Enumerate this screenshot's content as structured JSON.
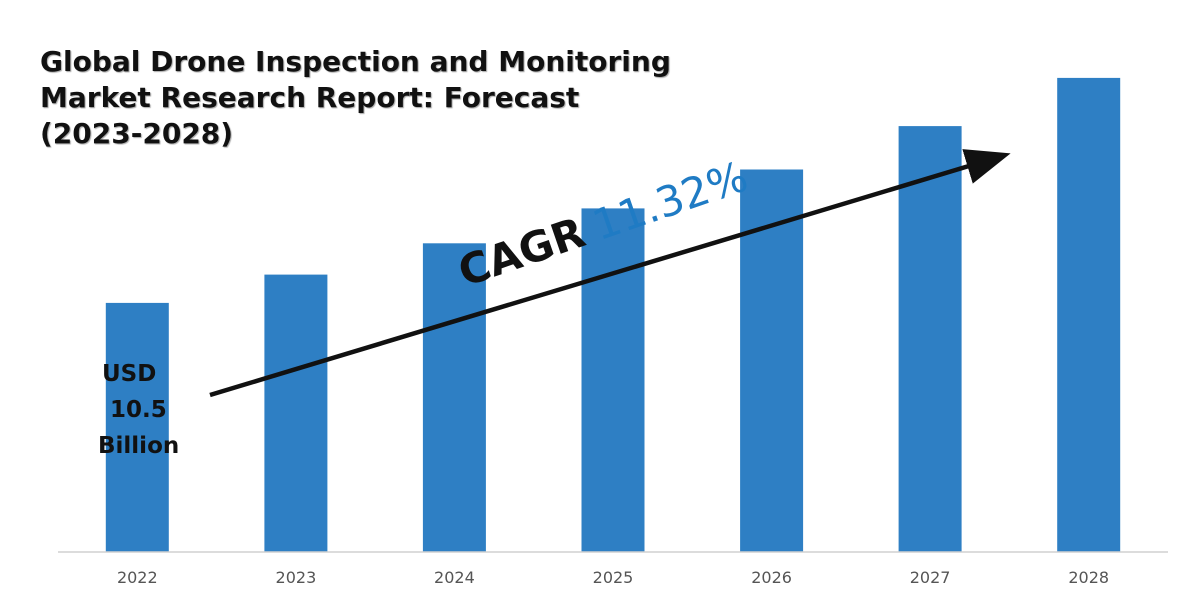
{
  "chart_data": {
    "type": "bar",
    "title_lines": [
      "Global Drone Inspection and Monitoring",
      "Market Research Report: Forecast",
      "(2023-2028)"
    ],
    "categories": [
      "2022",
      "2023",
      "2024",
      "2025",
      "2026",
      "2027",
      "2028"
    ],
    "values": [
      10.5,
      11.69,
      13.01,
      14.48,
      16.12,
      17.95,
      19.98
    ],
    "unit": "USD Billion",
    "ylim": [
      0,
      22
    ],
    "grid": false,
    "start_label": [
      "USD",
      "10.5",
      "Billion"
    ],
    "annotation": {
      "label": "CAGR",
      "value": "11.32%"
    },
    "colors": {
      "bar": "#2e7fc4",
      "accent": "#1f7bc4",
      "axis": "#d0d0d0",
      "arrow": "#111111"
    }
  }
}
